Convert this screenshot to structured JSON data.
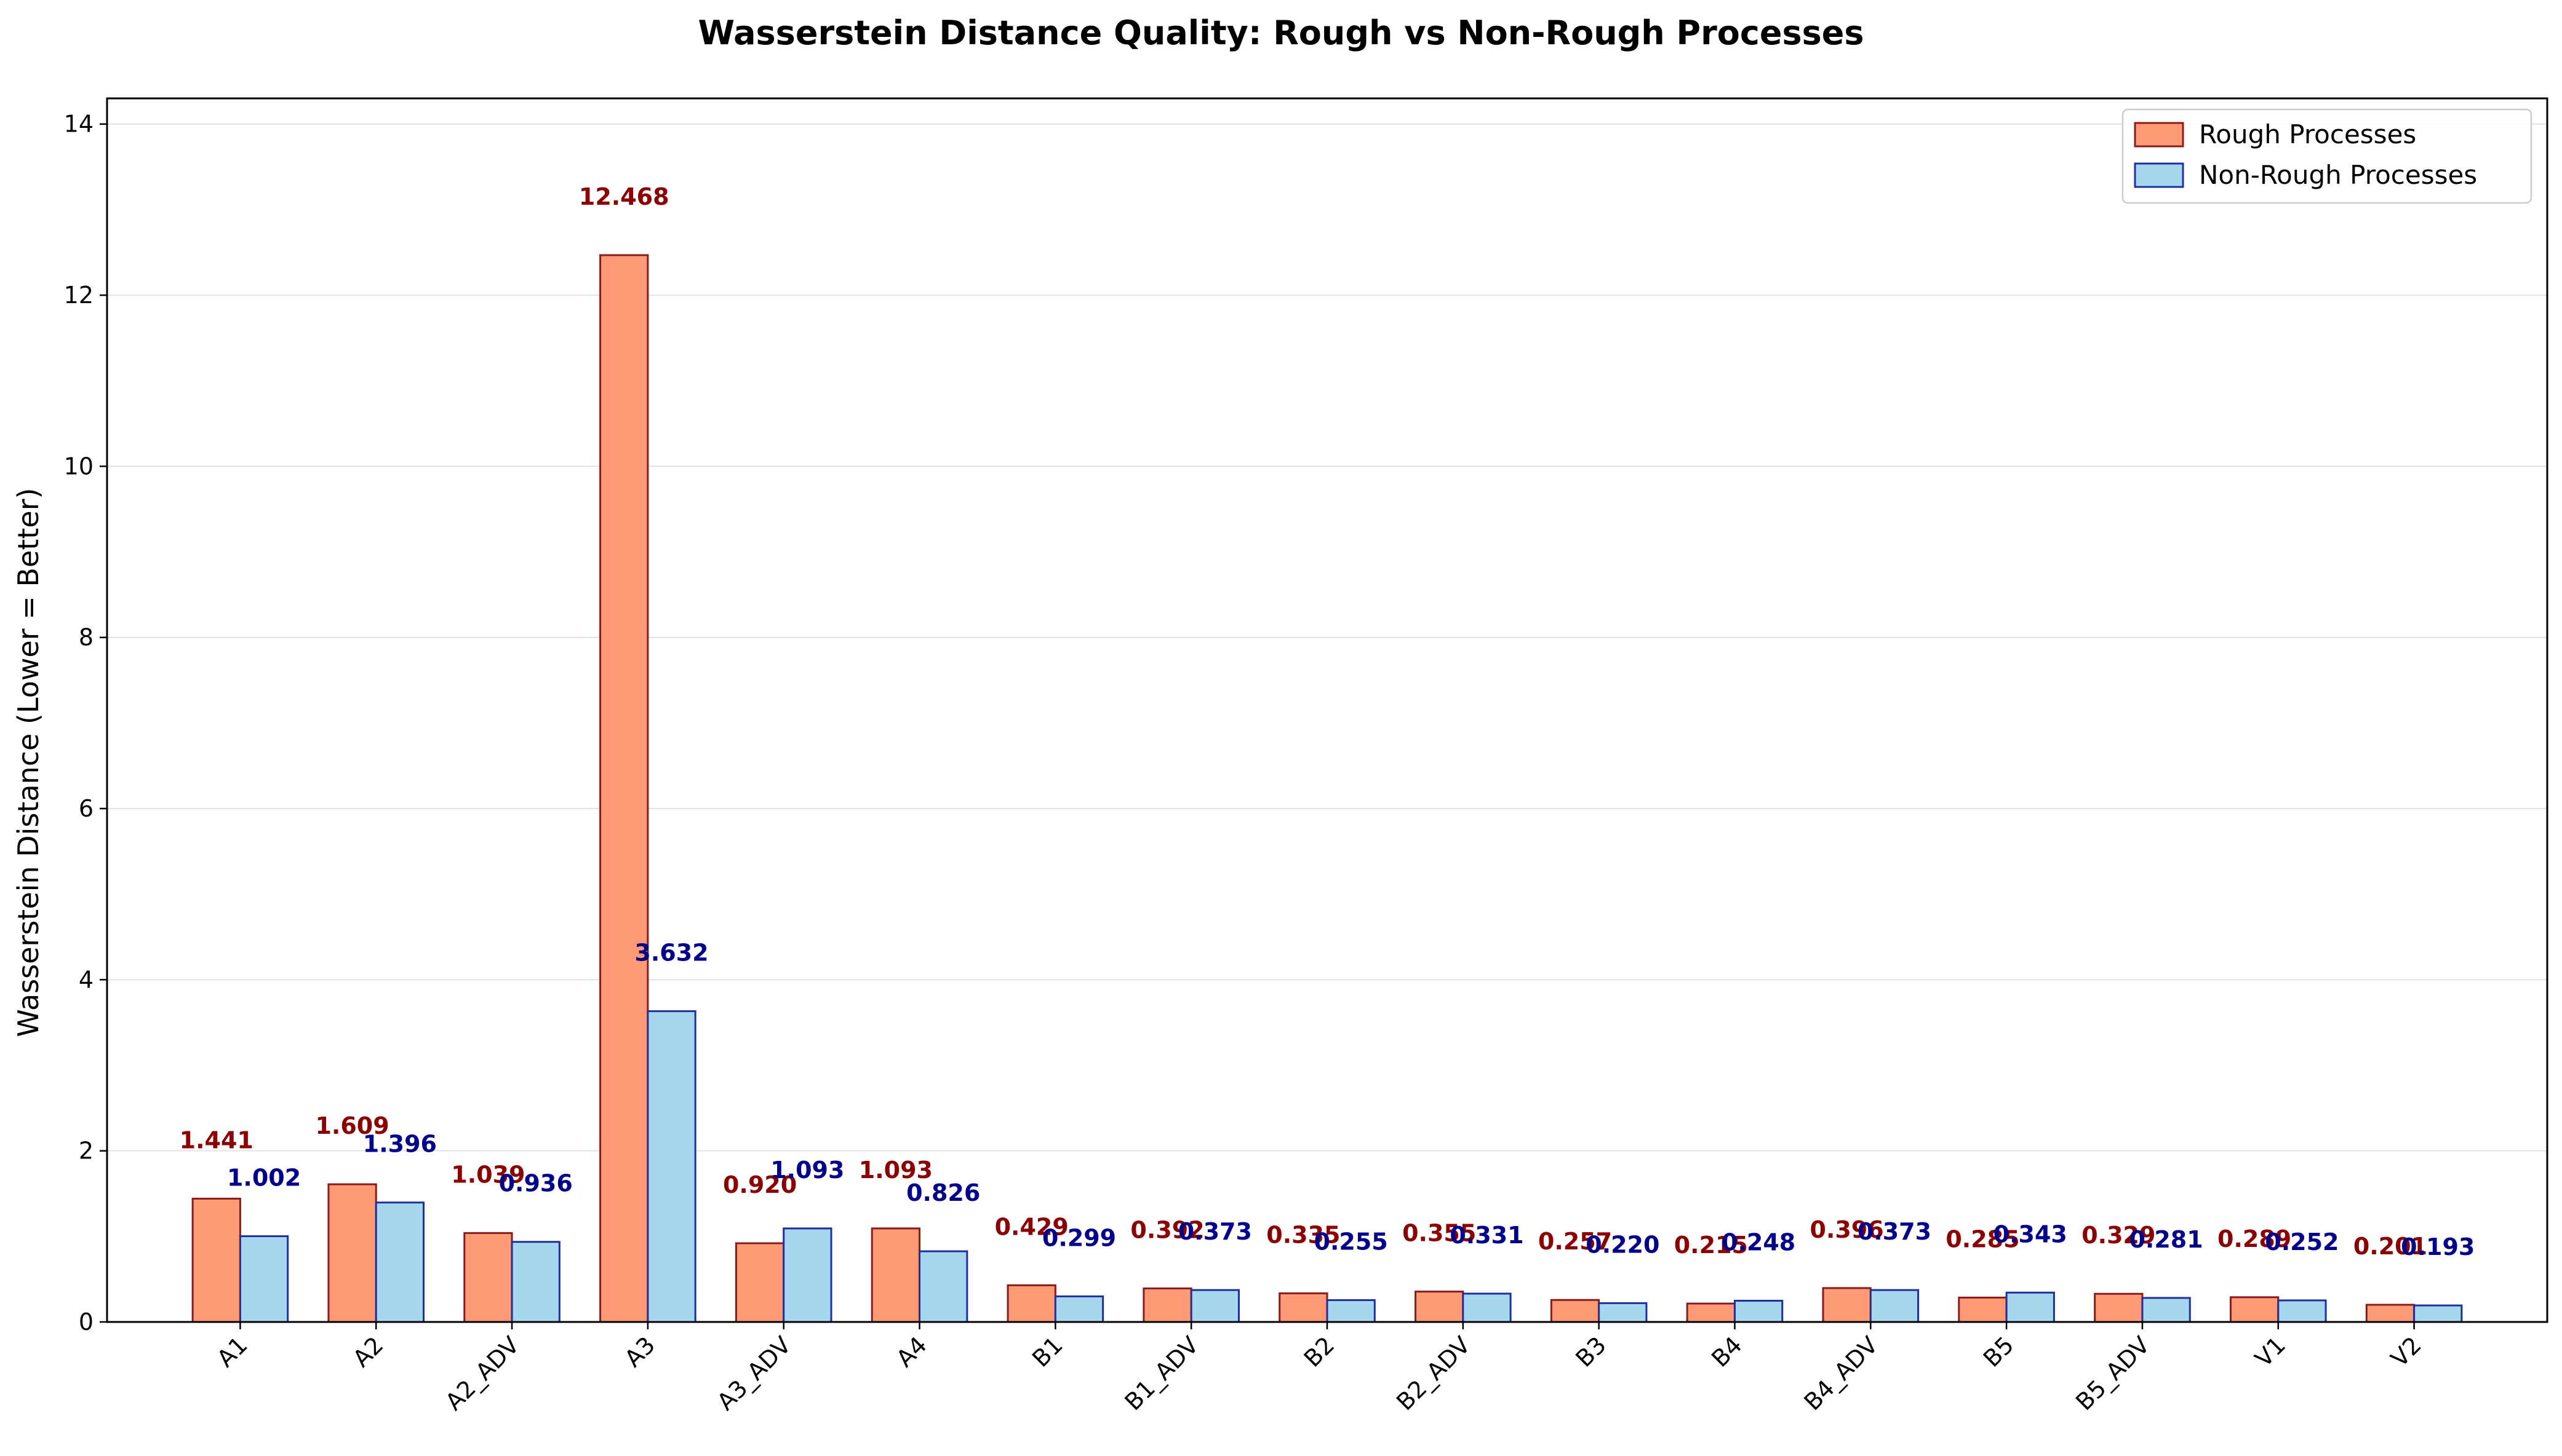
{
  "chart_data": {
    "type": "bar",
    "title": "Wasserstein Distance Quality: Rough vs Non-Rough Processes",
    "xlabel": "",
    "ylabel": "Wasserstein Distance (Lower = Better)",
    "ylim": [
      0,
      14.3
    ],
    "yticks": [
      0,
      2,
      4,
      6,
      8,
      10,
      12,
      14
    ],
    "grid": "horizontal",
    "legend_position": "top-right",
    "categories": [
      "A1",
      "A2",
      "A2_ADV",
      "A3",
      "A3_ADV",
      "A4",
      "B1",
      "B1_ADV",
      "B2",
      "B2_ADV",
      "B3",
      "B4",
      "B4_ADV",
      "B5",
      "B5_ADV",
      "V1",
      "V2"
    ],
    "series": [
      {
        "name": "Rough Processes",
        "color": "#ff9a76",
        "edge_color": "#8b1a1a",
        "label_color": "#8b0000",
        "values": [
          1.441,
          1.609,
          1.039,
          12.468,
          0.92,
          1.093,
          0.429,
          0.392,
          0.335,
          0.355,
          0.257,
          0.215,
          0.396,
          0.285,
          0.329,
          0.289,
          0.201
        ],
        "labels": [
          "1.441",
          "1.609",
          "1.039",
          "12.468",
          "0.920",
          "1.093",
          "0.429",
          "0.392",
          "0.335",
          "0.355",
          "0.257",
          "0.215",
          "0.396",
          "0.285",
          "0.329",
          "0.289",
          "0.201"
        ]
      },
      {
        "name": "Non-Rough Processes",
        "color": "#a5d8ef",
        "edge_color": "#1f2fa0",
        "label_color": "#00008b",
        "values": [
          1.002,
          1.396,
          0.936,
          3.632,
          1.093,
          0.826,
          0.299,
          0.373,
          0.255,
          0.331,
          0.22,
          0.248,
          0.373,
          0.343,
          0.281,
          0.252,
          0.193
        ],
        "labels": [
          "1.002",
          "1.396",
          "0.936",
          "3.632",
          "1.093",
          "0.826",
          "0.299",
          "0.373",
          "0.255",
          "0.331",
          "0.220",
          "0.248",
          "0.373",
          "0.343",
          "0.281",
          "0.252",
          "0.193"
        ]
      }
    ]
  }
}
